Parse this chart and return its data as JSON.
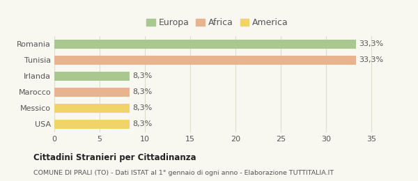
{
  "categories": [
    "Romania",
    "Tunisia",
    "Irlanda",
    "Marocco",
    "Messico",
    "USA"
  ],
  "values": [
    33.3,
    33.3,
    8.3,
    8.3,
    8.3,
    8.3
  ],
  "labels": [
    "33,3%",
    "33,3%",
    "8,3%",
    "8,3%",
    "8,3%",
    "8,3%"
  ],
  "colors": [
    "#a8c890",
    "#e8b490",
    "#a8c890",
    "#e8b490",
    "#f0d468",
    "#f0d468"
  ],
  "legend_entries": [
    {
      "label": "Europa",
      "color": "#a8c890"
    },
    {
      "label": "Africa",
      "color": "#e8b490"
    },
    {
      "label": "America",
      "color": "#f0d468"
    }
  ],
  "xlim": [
    0,
    36
  ],
  "xticks": [
    0,
    5,
    10,
    15,
    20,
    25,
    30,
    35
  ],
  "title": "Cittadini Stranieri per Cittadinanza",
  "subtitle": "COMUNE DI PRALI (TO) - Dati ISTAT al 1° gennaio di ogni anno - Elaborazione TUTTITALIA.IT",
  "background_color": "#f8f8f0",
  "grid_color": "#ddddcc",
  "label_fontsize": 8,
  "bar_label_fontsize": 8
}
